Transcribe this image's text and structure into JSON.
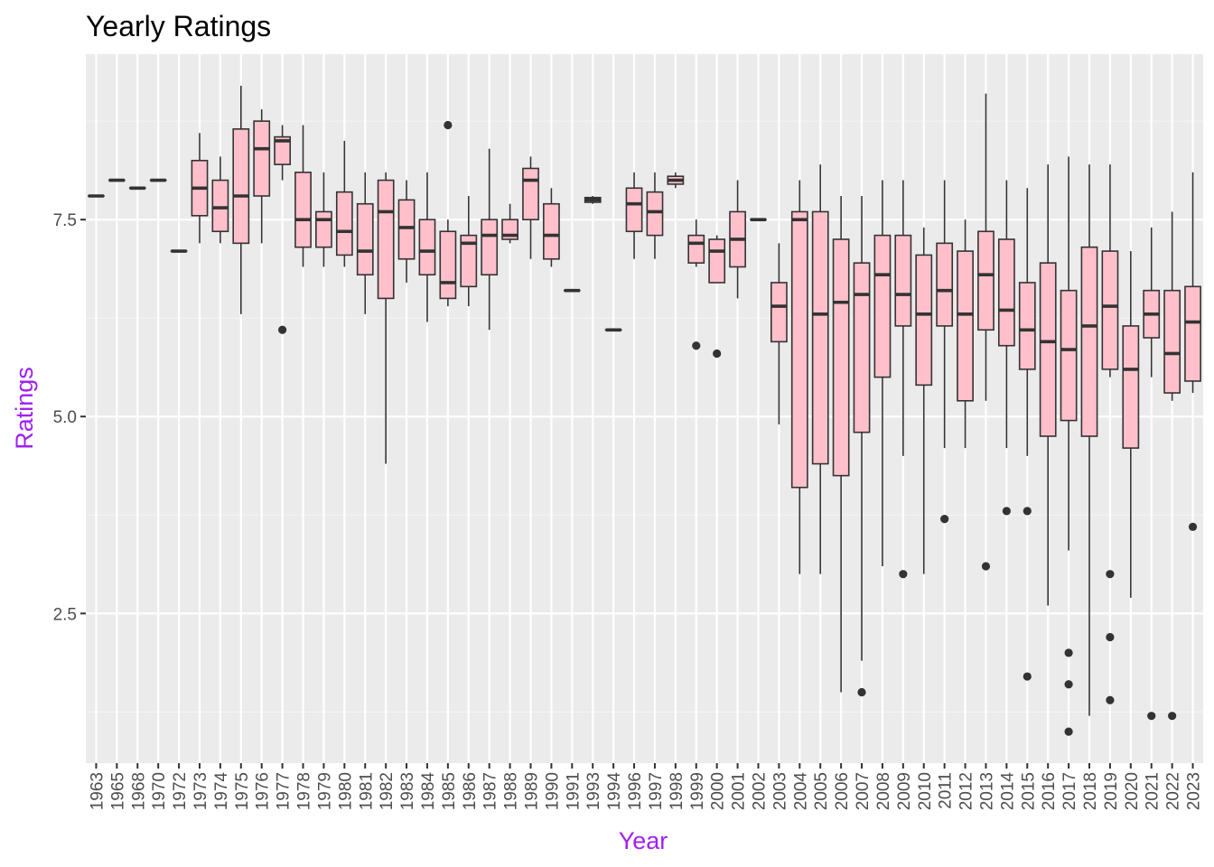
{
  "chart_data": {
    "type": "boxplot",
    "title": "Yearly Ratings",
    "xlabel": "Year",
    "ylabel": "Ratings",
    "ylim": [
      0.6,
      9.6
    ],
    "yticks": [
      2.5,
      5.0,
      7.5
    ],
    "ytick_labels": [
      "2.5",
      "5.0",
      "7.5"
    ],
    "grid": true,
    "colors": {
      "panel_background": "#ebebeb",
      "grid_major": "#ffffff",
      "grid_minor": "#f5f5f5",
      "box_fill": "#ffc0cb",
      "box_line": "#333333",
      "axis_title": "#a020f0",
      "tick_label": "#4d4d4d"
    },
    "categories": [
      "1963",
      "1965",
      "1968",
      "1970",
      "1972",
      "1973",
      "1974",
      "1975",
      "1976",
      "1977",
      "1978",
      "1979",
      "1980",
      "1981",
      "1982",
      "1983",
      "1984",
      "1985",
      "1986",
      "1987",
      "1988",
      "1989",
      "1990",
      "1991",
      "1993",
      "1994",
      "1996",
      "1997",
      "1998",
      "1999",
      "2000",
      "2001",
      "2002",
      "2003",
      "2004",
      "2005",
      "2006",
      "2007",
      "2008",
      "2009",
      "2010",
      "2011",
      "2012",
      "2013",
      "2014",
      "2015",
      "2016",
      "2017",
      "2018",
      "2019",
      "2020",
      "2021",
      "2022",
      "2023"
    ],
    "boxes": [
      {
        "min": 7.8,
        "q1": 7.8,
        "median": 7.8,
        "q3": 7.8,
        "max": 7.8,
        "outliers": []
      },
      {
        "min": 8.0,
        "q1": 8.0,
        "median": 8.0,
        "q3": 8.0,
        "max": 8.0,
        "outliers": []
      },
      {
        "min": 7.9,
        "q1": 7.9,
        "median": 7.9,
        "q3": 7.9,
        "max": 7.9,
        "outliers": []
      },
      {
        "min": 8.0,
        "q1": 8.0,
        "median": 8.0,
        "q3": 8.0,
        "max": 8.0,
        "outliers": []
      },
      {
        "min": 7.1,
        "q1": 7.1,
        "median": 7.1,
        "q3": 7.1,
        "max": 7.1,
        "outliers": []
      },
      {
        "min": 7.2,
        "q1": 7.55,
        "median": 7.9,
        "q3": 8.25,
        "max": 8.6,
        "outliers": []
      },
      {
        "min": 7.2,
        "q1": 7.35,
        "median": 7.65,
        "q3": 8.0,
        "max": 8.3,
        "outliers": []
      },
      {
        "min": 6.3,
        "q1": 7.2,
        "median": 7.8,
        "q3": 8.65,
        "max": 9.2,
        "outliers": []
      },
      {
        "min": 7.2,
        "q1": 7.8,
        "median": 8.4,
        "q3": 8.75,
        "max": 8.9,
        "outliers": []
      },
      {
        "min": 8.0,
        "q1": 8.2,
        "median": 8.5,
        "q3": 8.55,
        "max": 8.7,
        "outliers": [
          6.1
        ]
      },
      {
        "min": 6.9,
        "q1": 7.15,
        "median": 7.5,
        "q3": 8.1,
        "max": 8.7,
        "outliers": []
      },
      {
        "min": 6.9,
        "q1": 7.15,
        "median": 7.5,
        "q3": 7.6,
        "max": 8.1,
        "outliers": []
      },
      {
        "min": 6.9,
        "q1": 7.05,
        "median": 7.35,
        "q3": 7.85,
        "max": 8.5,
        "outliers": []
      },
      {
        "min": 6.3,
        "q1": 6.8,
        "median": 7.1,
        "q3": 7.7,
        "max": 8.1,
        "outliers": []
      },
      {
        "min": 4.4,
        "q1": 6.5,
        "median": 7.6,
        "q3": 8.0,
        "max": 8.1,
        "outliers": []
      },
      {
        "min": 6.7,
        "q1": 7.0,
        "median": 7.4,
        "q3": 7.75,
        "max": 8.0,
        "outliers": []
      },
      {
        "min": 6.2,
        "q1": 6.8,
        "median": 7.1,
        "q3": 7.5,
        "max": 8.1,
        "outliers": []
      },
      {
        "min": 6.4,
        "q1": 6.5,
        "median": 6.7,
        "q3": 7.35,
        "max": 7.5,
        "outliers": [
          8.7
        ]
      },
      {
        "min": 6.4,
        "q1": 6.65,
        "median": 7.2,
        "q3": 7.3,
        "max": 7.8,
        "outliers": []
      },
      {
        "min": 6.1,
        "q1": 6.8,
        "median": 7.3,
        "q3": 7.5,
        "max": 8.4,
        "outliers": []
      },
      {
        "min": 7.2,
        "q1": 7.25,
        "median": 7.3,
        "q3": 7.5,
        "max": 7.7,
        "outliers": []
      },
      {
        "min": 7.0,
        "q1": 7.5,
        "median": 8.0,
        "q3": 8.15,
        "max": 8.3,
        "outliers": []
      },
      {
        "min": 6.9,
        "q1": 7.0,
        "median": 7.3,
        "q3": 7.7,
        "max": 7.9,
        "outliers": []
      },
      {
        "min": 6.6,
        "q1": 6.6,
        "median": 6.6,
        "q3": 6.6,
        "max": 6.6,
        "outliers": []
      },
      {
        "min": 7.7,
        "q1": 7.72,
        "median": 7.75,
        "q3": 7.78,
        "max": 7.8,
        "outliers": []
      },
      {
        "min": 6.1,
        "q1": 6.1,
        "median": 6.1,
        "q3": 6.1,
        "max": 6.1,
        "outliers": []
      },
      {
        "min": 7.0,
        "q1": 7.35,
        "median": 7.7,
        "q3": 7.9,
        "max": 8.1,
        "outliers": []
      },
      {
        "min": 7.0,
        "q1": 7.3,
        "median": 7.6,
        "q3": 7.85,
        "max": 8.1,
        "outliers": []
      },
      {
        "min": 7.9,
        "q1": 7.95,
        "median": 8.0,
        "q3": 8.05,
        "max": 8.1,
        "outliers": []
      },
      {
        "min": 6.9,
        "q1": 6.95,
        "median": 7.2,
        "q3": 7.3,
        "max": 7.5,
        "outliers": [
          5.9
        ]
      },
      {
        "min": 6.7,
        "q1": 6.7,
        "median": 7.1,
        "q3": 7.25,
        "max": 7.3,
        "outliers": [
          5.8
        ]
      },
      {
        "min": 6.5,
        "q1": 6.9,
        "median": 7.25,
        "q3": 7.6,
        "max": 8.0,
        "outliers": []
      },
      {
        "min": 7.5,
        "q1": 7.5,
        "median": 7.5,
        "q3": 7.5,
        "max": 7.5,
        "outliers": []
      },
      {
        "min": 4.9,
        "q1": 5.95,
        "median": 6.4,
        "q3": 6.7,
        "max": 7.2,
        "outliers": []
      },
      {
        "min": 3.0,
        "q1": 4.1,
        "median": 7.5,
        "q3": 7.6,
        "max": 8.0,
        "outliers": []
      },
      {
        "min": 3.0,
        "q1": 4.4,
        "median": 6.3,
        "q3": 7.6,
        "max": 8.2,
        "outliers": []
      },
      {
        "min": 1.5,
        "q1": 4.25,
        "median": 6.45,
        "q3": 7.25,
        "max": 7.8,
        "outliers": []
      },
      {
        "min": 1.9,
        "q1": 4.8,
        "median": 6.55,
        "q3": 6.95,
        "max": 7.8,
        "outliers": [
          1.5
        ]
      },
      {
        "min": 3.1,
        "q1": 5.5,
        "median": 6.8,
        "q3": 7.3,
        "max": 8.0,
        "outliers": []
      },
      {
        "min": 4.5,
        "q1": 6.15,
        "median": 6.55,
        "q3": 7.3,
        "max": 8.0,
        "outliers": [
          3.0
        ]
      },
      {
        "min": 3.0,
        "q1": 5.4,
        "median": 6.3,
        "q3": 7.05,
        "max": 7.4,
        "outliers": []
      },
      {
        "min": 4.6,
        "q1": 6.15,
        "median": 6.6,
        "q3": 7.2,
        "max": 8.0,
        "outliers": [
          3.7
        ]
      },
      {
        "min": 4.6,
        "q1": 5.2,
        "median": 6.3,
        "q3": 7.1,
        "max": 7.5,
        "outliers": []
      },
      {
        "min": 5.2,
        "q1": 6.1,
        "median": 6.8,
        "q3": 7.35,
        "max": 9.1,
        "outliers": [
          3.1
        ]
      },
      {
        "min": 4.6,
        "q1": 5.9,
        "median": 6.35,
        "q3": 7.25,
        "max": 8.0,
        "outliers": [
          3.8
        ]
      },
      {
        "min": 4.5,
        "q1": 5.6,
        "median": 6.1,
        "q3": 6.7,
        "max": 7.9,
        "outliers": [
          3.8,
          1.7
        ]
      },
      {
        "min": 2.6,
        "q1": 4.75,
        "median": 5.95,
        "q3": 6.95,
        "max": 8.2,
        "outliers": []
      },
      {
        "min": 3.3,
        "q1": 4.95,
        "median": 5.85,
        "q3": 6.6,
        "max": 8.3,
        "outliers": [
          2.0,
          1.6,
          1.0
        ]
      },
      {
        "min": 1.2,
        "q1": 4.75,
        "median": 6.15,
        "q3": 7.15,
        "max": 8.2,
        "outliers": []
      },
      {
        "min": 5.5,
        "q1": 5.6,
        "median": 6.4,
        "q3": 7.1,
        "max": 8.2,
        "outliers": [
          3.0,
          2.2,
          1.4
        ]
      },
      {
        "min": 2.7,
        "q1": 4.6,
        "median": 5.6,
        "q3": 6.15,
        "max": 7.1,
        "outliers": []
      },
      {
        "min": 5.5,
        "q1": 6.0,
        "median": 6.3,
        "q3": 6.6,
        "max": 7.4,
        "outliers": [
          1.2
        ]
      },
      {
        "min": 5.2,
        "q1": 5.3,
        "median": 5.8,
        "q3": 6.6,
        "max": 7.6,
        "outliers": [
          1.2
        ]
      },
      {
        "min": 5.3,
        "q1": 5.45,
        "median": 6.2,
        "q3": 6.65,
        "max": 8.1,
        "outliers": [
          3.6
        ]
      }
    ]
  }
}
